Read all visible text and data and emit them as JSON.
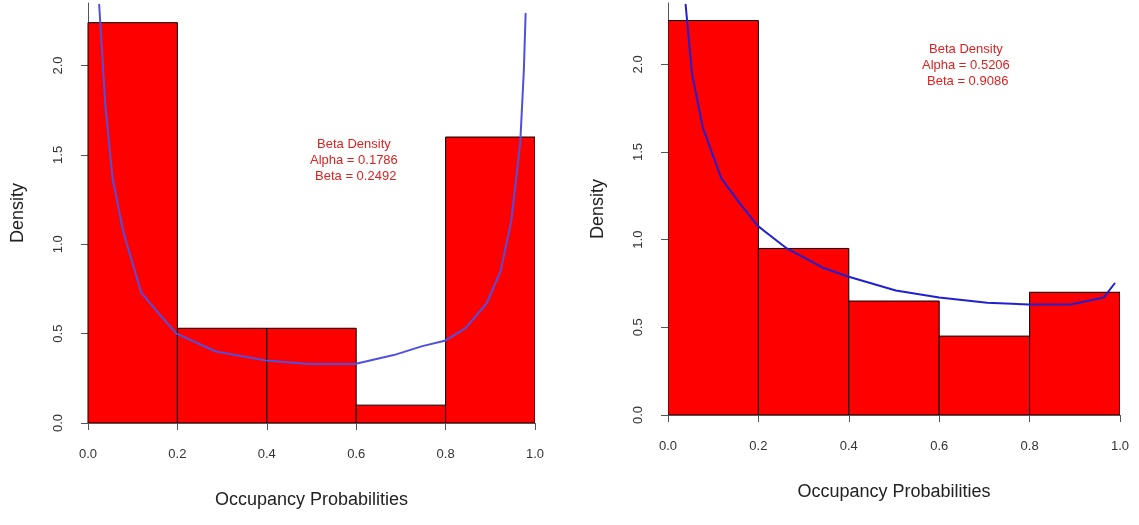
{
  "chart_data": [
    {
      "type": "histogram",
      "bins": [
        0,
        0.2,
        0.4,
        0.6,
        0.8,
        1.0
      ],
      "values": [
        2.24,
        0.53,
        0.53,
        0.1,
        1.6
      ],
      "color": "#ff0000",
      "series": [
        {
          "type": "line",
          "color": "#5050e0",
          "x": [
            0.025,
            0.039,
            0.055,
            0.079,
            0.119,
            0.159,
            0.198,
            0.286,
            0.398,
            0.493,
            0.597,
            0.684,
            0.748,
            0.798,
            0.844,
            0.892,
            0.923,
            0.947,
            0.967,
            0.975,
            0.979
          ],
          "values": [
            2.34,
            1.77,
            1.37,
            1.07,
            0.73,
            0.61,
            0.5,
            0.4,
            0.35,
            0.33,
            0.33,
            0.38,
            0.43,
            0.46,
            0.53,
            0.67,
            0.85,
            1.13,
            1.57,
            1.97,
            2.29
          ]
        }
      ],
      "xlim": [
        0,
        1
      ],
      "ylim": [
        0,
        2.35
      ],
      "xticks": [
        {
          "value": 0,
          "label": "0.0"
        },
        {
          "value": 0.2,
          "label": "0.2"
        },
        {
          "value": 0.4,
          "label": "0.4"
        },
        {
          "value": 0.6,
          "label": "0.6"
        },
        {
          "value": 0.8,
          "label": "0.8"
        },
        {
          "value": 1,
          "label": "1.0"
        }
      ],
      "yticks": [
        {
          "value": 0,
          "label": "0.0"
        },
        {
          "value": 0.5,
          "label": "0.5"
        },
        {
          "value": 1,
          "label": "1.0"
        },
        {
          "value": 1.5,
          "label": "1.5"
        },
        {
          "value": 2,
          "label": "2.0"
        }
      ],
      "xlabel": "Occupancy Probabilities",
      "ylabel": "Density",
      "grid": false,
      "annotations": [
        "Beta Density\nAlpha = 0.1786\n Beta = 0.2492"
      ]
    },
    {
      "type": "histogram",
      "bins": [
        0,
        0.2,
        0.4,
        0.6,
        0.8,
        1.0
      ],
      "values": [
        2.25,
        0.95,
        0.65,
        0.45,
        0.7
      ],
      "color": "#ff0000",
      "series": [
        {
          "type": "line",
          "color": "#2020d0",
          "x": [
            0.039,
            0.053,
            0.077,
            0.118,
            0.158,
            0.198,
            0.263,
            0.343,
            0.398,
            0.504,
            0.6,
            0.706,
            0.799,
            0.891,
            0.964,
            0.988
          ],
          "values": [
            2.34,
            1.95,
            1.64,
            1.35,
            1.21,
            1.08,
            0.95,
            0.84,
            0.79,
            0.71,
            0.67,
            0.64,
            0.63,
            0.63,
            0.67,
            0.75
          ]
        }
      ],
      "xlim": [
        0,
        1
      ],
      "ylim": [
        0,
        2.35
      ],
      "xticks": [
        {
          "value": 0,
          "label": "0.0"
        },
        {
          "value": 0.2,
          "label": "0.2"
        },
        {
          "value": 0.4,
          "label": "0.4"
        },
        {
          "value": 0.6,
          "label": "0.6"
        },
        {
          "value": 0.8,
          "label": "0.8"
        },
        {
          "value": 1,
          "label": "1.0"
        }
      ],
      "yticks": [
        {
          "value": 0,
          "label": "0.0"
        },
        {
          "value": 0.5,
          "label": "0.5"
        },
        {
          "value": 1,
          "label": "1.0"
        },
        {
          "value": 1.5,
          "label": "1.5"
        },
        {
          "value": 2,
          "label": "2.0"
        }
      ],
      "xlabel": "Occupancy Probabilities",
      "ylabel": "Density",
      "grid": false,
      "annotations": [
        "Beta Density\nAlpha = 0.5206\n Beta = 0.9086"
      ]
    }
  ]
}
